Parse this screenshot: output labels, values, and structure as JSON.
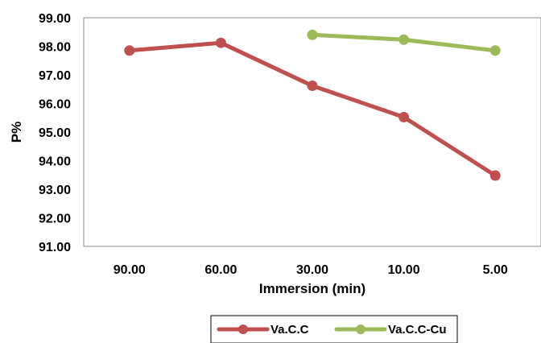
{
  "chart_data": {
    "type": "line",
    "title": "",
    "xlabel": "Immersion (min)",
    "ylabel": "P%",
    "categories": [
      "90.00",
      "60.00",
      "30.00",
      "10.00",
      "5.00"
    ],
    "yticks": [
      "91.00",
      "92.00",
      "93.00",
      "94.00",
      "95.00",
      "96.00",
      "97.00",
      "98.00",
      "99.00"
    ],
    "ylim": [
      91,
      99
    ],
    "grid": false,
    "legend": "bottom",
    "series": [
      {
        "name": "Va.C.C",
        "color": "#C0504D",
        "values": [
          97.85,
          98.12,
          96.62,
          95.52,
          93.48
        ]
      },
      {
        "name": "Va.C.C-Cu",
        "color": "#9BBB59",
        "values": [
          null,
          null,
          98.4,
          98.23,
          97.85
        ]
      }
    ]
  }
}
